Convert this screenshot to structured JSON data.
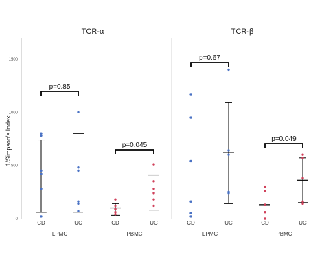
{
  "colors": {
    "CD_blue": "#4a72c4",
    "UC_blue": "#4a72c4",
    "CD_red": "#d0405a",
    "UC_red": "#d0405a",
    "axis": "#999999",
    "whisker": "#000000"
  },
  "chart_data": {
    "type": "scatter",
    "ylabel": "1/Simpson's Index",
    "ylim": [
      0,
      1700
    ],
    "yticks": [
      0,
      500,
      1000,
      1500
    ],
    "yticklabels": [
      "0",
      "500",
      "1000",
      "1500"
    ],
    "panels": [
      {
        "title": "TCR-α",
        "groups": [
          {
            "label": "LPMC",
            "comparison": "p=0.85",
            "series": [
              {
                "name": "CD",
                "color": "#4a72c4",
                "values": [
                  800,
                  780,
                  450,
                  420,
                  280,
                  20
                ],
                "median": 60,
                "whisker_low": 60,
                "whisker_high": 740
              },
              {
                "name": "UC",
                "color": "#4a72c4",
                "values": [
                  1000,
                  480,
                  450,
                  160,
                  140,
                  70
                ],
                "median": 800,
                "whisker_low": 60,
                "whisker_high": 60
              }
            ]
          },
          {
            "label": "PBMC",
            "comparison": "p=0.045",
            "series": [
              {
                "name": "CD",
                "color": "#d0405a",
                "values": [
                  180,
                  120,
                  90,
                  60,
                  40
                ],
                "median": 100,
                "whisker_low": 30,
                "whisker_high": 140
              },
              {
                "name": "UC",
                "color": "#d0405a",
                "values": [
                  510,
                  350,
                  280,
                  240,
                  180,
                  120
                ],
                "median": 410,
                "whisker_low": 80,
                "whisker_high": 80
              }
            ]
          }
        ]
      },
      {
        "title": "TCR-β",
        "groups": [
          {
            "label": "LPMC",
            "comparison": "p=0.67",
            "series": [
              {
                "name": "CD",
                "color": "#4a72c4",
                "values": [
                  1170,
                  950,
                  540,
                  160,
                  50,
                  20
                ],
                "median": null,
                "whisker_low": null,
                "whisker_high": null
              },
              {
                "name": "UC",
                "color": "#4a72c4",
                "values": [
                  1400,
                  640,
                  600,
                  250,
                  240
                ],
                "median": 620,
                "whisker_low": 140,
                "whisker_high": 1090
              }
            ]
          },
          {
            "label": "PBMC",
            "comparison": "p=0.049",
            "series": [
              {
                "name": "CD",
                "color": "#d0405a",
                "values": [
                  300,
                  260,
                  130,
                  60,
                  0
                ],
                "median": 130,
                "whisker_low": 130,
                "whisker_high": 130
              },
              {
                "name": "UC",
                "color": "#d0405a",
                "values": [
                  600,
                  570,
                  380,
                  160,
                  140
                ],
                "median": 360,
                "whisker_low": 150,
                "whisker_high": 570
              }
            ]
          }
        ]
      }
    ]
  }
}
